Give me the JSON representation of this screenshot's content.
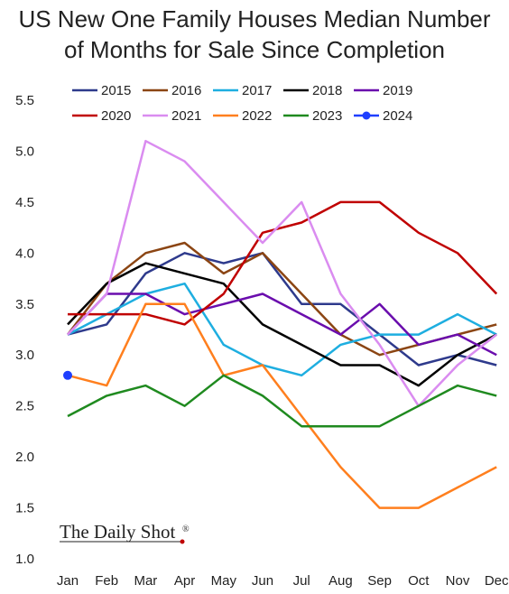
{
  "chart_data": {
    "type": "line",
    "title_line1": "US New One Family Houses Median Number",
    "title_line2": "of Months for Sale Since Completion",
    "xlabel": "",
    "ylabel": "",
    "categories": [
      "Jan",
      "Feb",
      "Mar",
      "Apr",
      "May",
      "Jun",
      "Jul",
      "Aug",
      "Sep",
      "Oct",
      "Nov",
      "Dec"
    ],
    "ylim": [
      1.0,
      5.5
    ],
    "yticks": [
      "1.0",
      "1.5",
      "2.0",
      "2.5",
      "3.0",
      "3.5",
      "4.0",
      "4.5",
      "5.0",
      "5.5"
    ],
    "grid": false,
    "legend_position": "top",
    "series": [
      {
        "name": "2015",
        "color": "#2E3A8C",
        "values": [
          3.2,
          3.3,
          3.8,
          4.0,
          3.9,
          4.0,
          3.5,
          3.5,
          3.2,
          2.9,
          3.0,
          2.9
        ]
      },
      {
        "name": "2016",
        "color": "#8B4513",
        "values": [
          3.2,
          3.7,
          4.0,
          4.1,
          3.8,
          4.0,
          3.6,
          3.2,
          3.0,
          3.1,
          3.2,
          3.3
        ]
      },
      {
        "name": "2017",
        "color": "#1EAEE0",
        "values": [
          3.2,
          3.4,
          3.6,
          3.7,
          3.1,
          2.9,
          2.8,
          3.1,
          3.2,
          3.2,
          3.4,
          3.2
        ]
      },
      {
        "name": "2018",
        "color": "#000000",
        "values": [
          3.3,
          3.7,
          3.9,
          3.8,
          3.7,
          3.3,
          3.1,
          2.9,
          2.9,
          2.7,
          3.0,
          3.2
        ]
      },
      {
        "name": "2019",
        "color": "#6A0DAD",
        "values": [
          3.2,
          3.6,
          3.6,
          3.4,
          3.5,
          3.6,
          3.4,
          3.2,
          3.5,
          3.1,
          3.2,
          3.0
        ]
      },
      {
        "name": "2020",
        "color": "#C00000",
        "values": [
          3.4,
          3.4,
          3.4,
          3.3,
          3.6,
          4.2,
          4.3,
          4.5,
          4.5,
          4.2,
          4.0,
          3.6
        ]
      },
      {
        "name": "2021",
        "color": "#DA8CF0",
        "values": [
          3.2,
          3.6,
          5.1,
          4.9,
          4.5,
          4.1,
          4.5,
          3.6,
          3.1,
          2.5,
          2.9,
          3.2
        ]
      },
      {
        "name": "2022",
        "color": "#FF7F1E",
        "values": [
          2.8,
          2.7,
          3.5,
          3.5,
          2.8,
          2.9,
          2.4,
          1.9,
          1.5,
          1.5,
          1.7,
          1.9
        ]
      },
      {
        "name": "2023",
        "color": "#1F8A1F",
        "values": [
          2.4,
          2.6,
          2.7,
          2.5,
          2.8,
          2.6,
          2.3,
          2.3,
          2.3,
          2.5,
          2.7,
          2.6
        ]
      },
      {
        "name": "2024",
        "color": "#1F3FFF",
        "values": [
          2.8,
          null,
          null,
          null,
          null,
          null,
          null,
          null,
          null,
          null,
          null,
          null
        ]
      }
    ]
  },
  "watermark": {
    "text": "The Daily Shot",
    "mark": "®"
  }
}
